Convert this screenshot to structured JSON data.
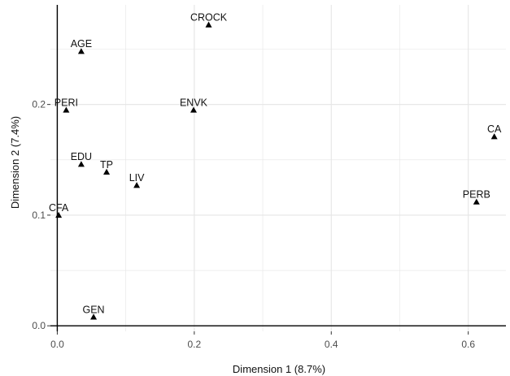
{
  "chart_data": {
    "type": "scatter",
    "xlabel": "Dimension 1 (8.7%)",
    "ylabel": "Dimension 2 (7.4%)",
    "xlim": [
      -0.01,
      0.655
    ],
    "ylim": [
      -0.005,
      0.29
    ],
    "x_ticks": [
      0.0,
      0.2,
      0.4,
      0.6
    ],
    "x_tick_labels": [
      "0.0",
      "0.2",
      "0.4",
      "0.6"
    ],
    "y_ticks": [
      0.0,
      0.1,
      0.2
    ],
    "y_tick_labels": [
      "0.0",
      "0.1",
      "0.2"
    ],
    "grid": true,
    "reference_lines": {
      "x": 0,
      "y": 0
    },
    "marker": "triangle",
    "colors": {
      "point": "#000000",
      "grid": "#e5e5e5",
      "axis": "#000000"
    },
    "points": [
      {
        "label": "CROCK",
        "x": 0.221,
        "y": 0.272
      },
      {
        "label": "AGE",
        "x": 0.035,
        "y": 0.248
      },
      {
        "label": "PERI",
        "x": 0.013,
        "y": 0.195
      },
      {
        "label": "ENVK",
        "x": 0.199,
        "y": 0.195
      },
      {
        "label": "CA",
        "x": 0.638,
        "y": 0.171
      },
      {
        "label": "EDU",
        "x": 0.035,
        "y": 0.146
      },
      {
        "label": "TP",
        "x": 0.072,
        "y": 0.139
      },
      {
        "label": "LIV",
        "x": 0.116,
        "y": 0.127
      },
      {
        "label": "PERB",
        "x": 0.612,
        "y": 0.112
      },
      {
        "label": "CFA",
        "x": 0.002,
        "y": 0.1
      },
      {
        "label": "GEN",
        "x": 0.053,
        "y": 0.008
      }
    ]
  }
}
